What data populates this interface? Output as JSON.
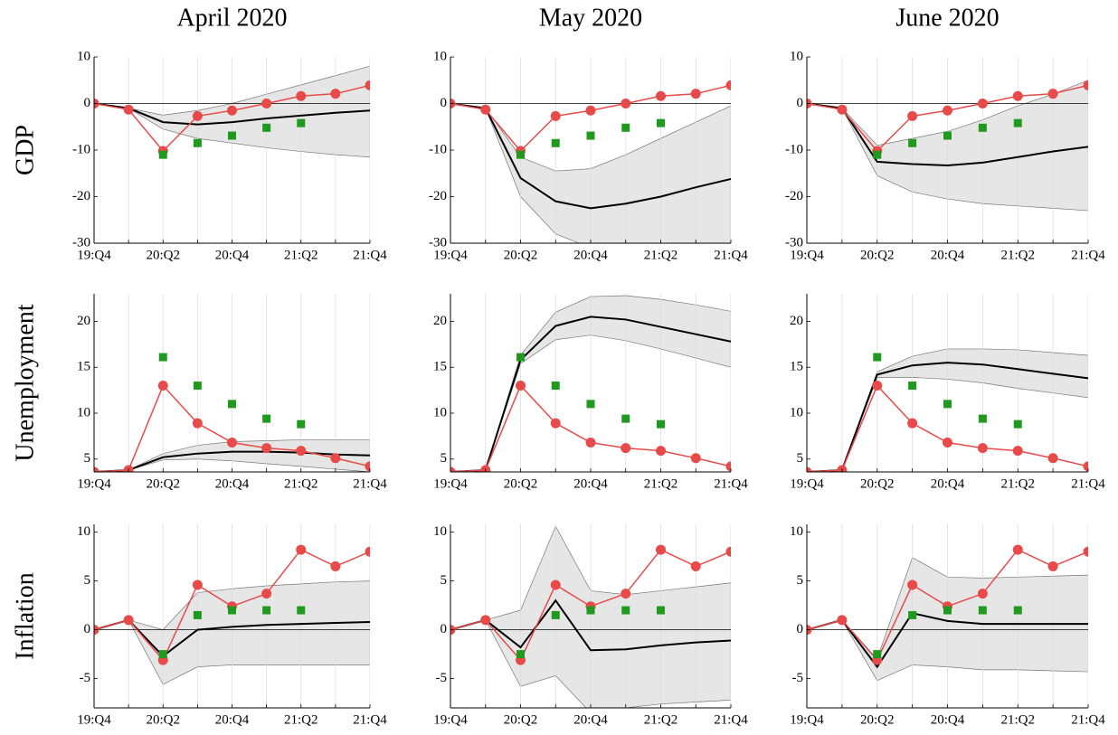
{
  "chart_data": [
    {
      "type": "line",
      "title": "April 2020",
      "ylabel": "GDP",
      "categories": [
        "19:Q4",
        null,
        "20:Q2",
        null,
        "20:Q4",
        null,
        "21:Q2",
        null,
        "21:Q4"
      ],
      "ylim": [
        -30,
        10
      ],
      "yticks": [
        -30,
        -20,
        -10,
        0,
        10
      ],
      "hlines": [
        0
      ],
      "xgrid": true,
      "band": {
        "color": "#e6e6e6",
        "upper": [
          0,
          -1,
          -2.5,
          -1.5,
          0,
          2,
          4,
          6,
          8
        ],
        "lower": [
          0,
          -1,
          -5.5,
          -7.5,
          -8.5,
          -9.5,
          -10.3,
          -11,
          -11.5
        ]
      },
      "series": [
        {
          "color": "#000000",
          "marker": "none",
          "values": [
            0,
            -1,
            -4,
            -4.5,
            -4,
            -3.2,
            -2.6,
            -2,
            -1.5
          ]
        },
        {
          "color": "#e84a4a",
          "marker": "circle",
          "values": [
            0,
            -1.3,
            -10.2,
            -2.7,
            -1.5,
            0,
            1.6,
            2.1,
            3.9
          ]
        },
        {
          "color": "#1f9a1f",
          "marker": "square",
          "values": [
            null,
            null,
            -11,
            -8.5,
            -6.9,
            -5.2,
            -4.2,
            null,
            null
          ]
        }
      ]
    },
    {
      "type": "line",
      "title": "May 2020",
      "categories": [
        "19:Q4",
        null,
        "20:Q2",
        null,
        "20:Q4",
        null,
        "21:Q2",
        null,
        "21:Q4"
      ],
      "ylim": [
        -30,
        10
      ],
      "yticks": [
        -30,
        -20,
        -10,
        0,
        10
      ],
      "hlines": [
        0
      ],
      "xgrid": true,
      "band": {
        "color": "#e6e6e6",
        "upper": [
          0,
          -1,
          -11.5,
          -14.5,
          -14,
          -11,
          -7.5,
          -4,
          -0.5
        ],
        "lower": [
          0,
          -1,
          -20,
          -28,
          -31,
          -33,
          -35,
          -36,
          -37
        ]
      },
      "series": [
        {
          "color": "#000000",
          "marker": "none",
          "values": [
            0,
            -1,
            -16,
            -21,
            -22.5,
            -21.5,
            -20,
            -18,
            -16.2
          ]
        },
        {
          "color": "#e84a4a",
          "marker": "circle",
          "values": [
            0,
            -1.3,
            -10.2,
            -2.7,
            -1.5,
            0,
            1.6,
            2.1,
            3.9
          ]
        },
        {
          "color": "#1f9a1f",
          "marker": "square",
          "values": [
            null,
            null,
            -11,
            -8.5,
            -6.9,
            -5.2,
            -4.2,
            null,
            null
          ]
        }
      ]
    },
    {
      "type": "line",
      "title": "June 2020",
      "categories": [
        "19:Q4",
        null,
        "20:Q2",
        null,
        "20:Q4",
        null,
        "21:Q2",
        null,
        "21:Q4"
      ],
      "ylim": [
        -30,
        10
      ],
      "yticks": [
        -30,
        -20,
        -10,
        0,
        10
      ],
      "hlines": [
        0
      ],
      "xgrid": true,
      "band": {
        "color": "#e6e6e6",
        "upper": [
          0,
          -1,
          -9,
          -7.5,
          -6,
          -3.5,
          -0.5,
          2,
          5
        ],
        "lower": [
          0,
          -1,
          -15.5,
          -19,
          -20.5,
          -21.5,
          -22,
          -22.5,
          -23
        ]
      },
      "series": [
        {
          "color": "#000000",
          "marker": "none",
          "values": [
            0,
            -1,
            -12.5,
            -13,
            -13.3,
            -12.7,
            -11.5,
            -10.3,
            -9.3
          ]
        },
        {
          "color": "#e84a4a",
          "marker": "circle",
          "values": [
            0,
            -1.3,
            -10.2,
            -2.7,
            -1.5,
            0,
            1.6,
            2.1,
            3.9
          ]
        },
        {
          "color": "#1f9a1f",
          "marker": "square",
          "values": [
            null,
            null,
            -11,
            -8.5,
            -6.9,
            -5.2,
            -4.2,
            null,
            null
          ]
        }
      ]
    },
    {
      "type": "line",
      "ylabel": "Unemployment",
      "categories": [
        "19:Q4",
        null,
        "20:Q2",
        null,
        "20:Q4",
        null,
        "21:Q2",
        null,
        "21:Q4"
      ],
      "ylim": [
        3.6,
        23
      ],
      "yticks": [
        5,
        10,
        15,
        20
      ],
      "xgrid": true,
      "band": {
        "color": "#e6e6e6",
        "upper": [
          3.6,
          3.8,
          5.6,
          6.5,
          6.9,
          7,
          7.1,
          7.1,
          7.1
        ],
        "lower": [
          3.6,
          3.8,
          4.9,
          5,
          4.8,
          4.5,
          4.2,
          3.9,
          3.6
        ]
      },
      "series": [
        {
          "color": "#000000",
          "marker": "none",
          "values": [
            3.6,
            3.8,
            5.2,
            5.6,
            5.8,
            5.8,
            5.7,
            5.5,
            5.4
          ]
        },
        {
          "color": "#e84a4a",
          "marker": "circle",
          "values": [
            3.6,
            3.8,
            13,
            8.9,
            6.8,
            6.2,
            5.9,
            5.1,
            4.2
          ]
        },
        {
          "color": "#1f9a1f",
          "marker": "square",
          "values": [
            null,
            null,
            16.1,
            13,
            11,
            9.4,
            8.8,
            null,
            null
          ]
        }
      ]
    },
    {
      "type": "line",
      "categories": [
        "19:Q4",
        null,
        "20:Q2",
        null,
        "20:Q4",
        null,
        "21:Q2",
        null,
        "21:Q4"
      ],
      "ylim": [
        3.6,
        23
      ],
      "yticks": [
        5,
        10,
        15,
        20
      ],
      "xgrid": true,
      "band": {
        "color": "#e6e6e6",
        "upper": [
          3.6,
          3.8,
          16.3,
          21,
          22.7,
          22.8,
          22.4,
          21.8,
          21.1
        ],
        "lower": [
          3.6,
          3.8,
          15.4,
          18,
          18.5,
          17.9,
          17,
          16,
          15
        ]
      },
      "series": [
        {
          "color": "#000000",
          "marker": "none",
          "values": [
            3.6,
            3.8,
            15.8,
            19.5,
            20.5,
            20.2,
            19.4,
            18.6,
            17.8
          ]
        },
        {
          "color": "#e84a4a",
          "marker": "circle",
          "values": [
            3.6,
            3.8,
            13,
            8.9,
            6.8,
            6.2,
            5.9,
            5.1,
            4.2
          ]
        },
        {
          "color": "#1f9a1f",
          "marker": "square",
          "values": [
            null,
            null,
            16.1,
            13,
            11,
            9.4,
            8.8,
            null,
            null
          ]
        }
      ]
    },
    {
      "type": "line",
      "categories": [
        "19:Q4",
        null,
        "20:Q2",
        null,
        "20:Q4",
        null,
        "21:Q2",
        null,
        "21:Q4"
      ],
      "ylim": [
        3.6,
        23
      ],
      "yticks": [
        5,
        10,
        15,
        20
      ],
      "xgrid": true,
      "band": {
        "color": "#e6e6e6",
        "upper": [
          3.6,
          3.8,
          14.5,
          16.2,
          17,
          17,
          16.9,
          16.6,
          16.3
        ],
        "lower": [
          3.6,
          3.8,
          13.9,
          13.9,
          13.7,
          13.3,
          12.7,
          12.2,
          11.7
        ]
      },
      "series": [
        {
          "color": "#000000",
          "marker": "none",
          "values": [
            3.6,
            3.8,
            14.2,
            15.2,
            15.5,
            15.3,
            14.8,
            14.3,
            13.8
          ]
        },
        {
          "color": "#e84a4a",
          "marker": "circle",
          "values": [
            3.6,
            3.8,
            13,
            8.9,
            6.8,
            6.2,
            5.9,
            5.1,
            4.2
          ]
        },
        {
          "color": "#1f9a1f",
          "marker": "square",
          "values": [
            null,
            null,
            16.1,
            13,
            11,
            9.4,
            8.8,
            null,
            null
          ]
        }
      ]
    },
    {
      "type": "line",
      "ylabel": "Inflation",
      "categories": [
        "19:Q4",
        null,
        "20:Q2",
        null,
        "20:Q4",
        null,
        "21:Q2",
        null,
        "21:Q4"
      ],
      "ylim": [
        -8,
        10.8
      ],
      "yticks": [
        -5,
        0,
        5,
        10
      ],
      "hlines": [
        0
      ],
      "xgrid": true,
      "band": {
        "color": "#e6e6e6",
        "upper": [
          0,
          1,
          0,
          3.8,
          4.2,
          4.5,
          4.7,
          4.9,
          5
        ],
        "lower": [
          0,
          1,
          -5.6,
          -3.8,
          -3.6,
          -3.6,
          -3.6,
          -3.6,
          -3.6
        ]
      },
      "series": [
        {
          "color": "#000000",
          "marker": "none",
          "values": [
            0,
            1,
            -2.7,
            0,
            0.3,
            0.5,
            0.6,
            0.7,
            0.8
          ]
        },
        {
          "color": "#e84a4a",
          "marker": "circle",
          "values": [
            0,
            1,
            -3.1,
            4.6,
            2.4,
            3.7,
            8.2,
            6.5,
            8
          ]
        },
        {
          "color": "#1f9a1f",
          "marker": "square",
          "values": [
            null,
            null,
            -2.5,
            1.5,
            2,
            2,
            2,
            null,
            null
          ]
        }
      ]
    },
    {
      "type": "line",
      "categories": [
        "19:Q4",
        null,
        "20:Q2",
        null,
        "20:Q4",
        null,
        "21:Q2",
        null,
        "21:Q4"
      ],
      "ylim": [
        -8,
        10.8
      ],
      "yticks": [
        -5,
        0,
        5,
        10
      ],
      "hlines": [
        0
      ],
      "xgrid": true,
      "band": {
        "color": "#e6e6e6",
        "upper": [
          0,
          1,
          2,
          10.6,
          4,
          3.6,
          4,
          4.4,
          4.8
        ],
        "lower": [
          0,
          1,
          -5.8,
          -4.7,
          -8.5,
          -8,
          -7.6,
          -7.4,
          -7.2
        ]
      },
      "series": [
        {
          "color": "#000000",
          "marker": "none",
          "values": [
            0,
            1,
            -1.8,
            3,
            -2.1,
            -2,
            -1.6,
            -1.3,
            -1.1
          ]
        },
        {
          "color": "#e84a4a",
          "marker": "circle",
          "values": [
            0,
            1,
            -3.1,
            4.6,
            2.4,
            3.7,
            8.2,
            6.5,
            8
          ]
        },
        {
          "color": "#1f9a1f",
          "marker": "square",
          "values": [
            null,
            null,
            -2.5,
            1.5,
            2,
            2,
            2,
            null,
            null
          ]
        }
      ]
    },
    {
      "type": "line",
      "categories": [
        "19:Q4",
        null,
        "20:Q2",
        null,
        "20:Q4",
        null,
        "21:Q2",
        null,
        "21:Q4"
      ],
      "ylim": [
        -8,
        10.8
      ],
      "yticks": [
        -5,
        0,
        5,
        10
      ],
      "hlines": [
        0
      ],
      "xgrid": true,
      "band": {
        "color": "#e6e6e6",
        "upper": [
          0,
          1,
          -3,
          7.4,
          5.4,
          5.3,
          5.4,
          5.5,
          5.6
        ],
        "lower": [
          0,
          1,
          -5.2,
          -3.6,
          -3.8,
          -4.1,
          -4.1,
          -4.2,
          -4.3
        ]
      },
      "series": [
        {
          "color": "#000000",
          "marker": "none",
          "values": [
            0,
            1,
            -3.8,
            1.7,
            0.9,
            0.6,
            0.6,
            0.6,
            0.6
          ]
        },
        {
          "color": "#e84a4a",
          "marker": "circle",
          "values": [
            0,
            1,
            -3.1,
            4.6,
            2.4,
            3.7,
            8.2,
            6.5,
            8
          ]
        },
        {
          "color": "#1f9a1f",
          "marker": "square",
          "values": [
            null,
            null,
            -2.5,
            1.5,
            2,
            2,
            2,
            null,
            null
          ]
        }
      ]
    }
  ]
}
